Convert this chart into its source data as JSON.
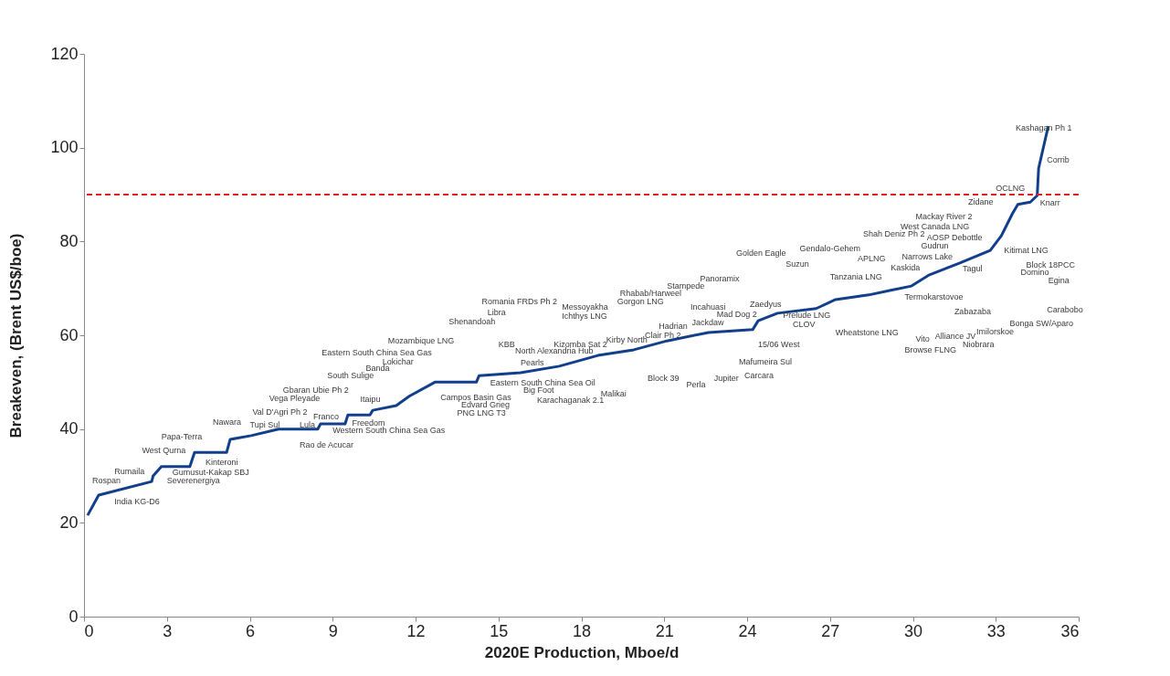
{
  "chart_data": {
    "type": "line",
    "xlabel": "2020E Production, Mboe/d",
    "ylabel": "Breakeven, (Brent US$/boe)",
    "xlim": [
      0,
      36
    ],
    "xticks": [
      0,
      3,
      6,
      9,
      12,
      15,
      18,
      21,
      24,
      27,
      30,
      33,
      36
    ],
    "ylim": [
      0,
      120
    ],
    "yticks": [
      0,
      20,
      40,
      60,
      80,
      100,
      120
    ],
    "grid": false,
    "marker": "none",
    "line_style": "solid",
    "series": [
      {
        "color": "#123f8c",
        "x": [
          0.13,
          0.53,
          2.45,
          2.5,
          2.8,
          3.83,
          4.0,
          5.16,
          5.29,
          6.05,
          7.04,
          8.46,
          8.56,
          9.45,
          9.55,
          10.35,
          10.45,
          11.3,
          11.77,
          12.7,
          14.2,
          14.3,
          15.8,
          17.2,
          18.6,
          19.9,
          21.1,
          22.6,
          24.2,
          24.4,
          25.1,
          26.5,
          27.2,
          28.4,
          29.2,
          29.95,
          30.6,
          31.7,
          32.8,
          33.2,
          33.6,
          33.8,
          34.25,
          34.5,
          34.55,
          34.9
        ],
        "values": [
          21.6,
          25.9,
          28.8,
          30,
          32,
          32,
          35,
          35,
          37.8,
          38.6,
          40,
          40,
          41.1,
          41.1,
          43,
          43,
          44,
          45,
          47,
          50,
          50,
          51.4,
          52,
          53.4,
          55.7,
          56.9,
          58.8,
          60.6,
          61.2,
          63.1,
          64.7,
          65.7,
          67.6,
          68.6,
          69.6,
          70.5,
          72.9,
          75.4,
          78.1,
          81.2,
          85.9,
          87.9,
          88.4,
          89.8,
          95.6,
          104.6
        ]
      }
    ],
    "ref_lines": [
      {
        "axis": "y",
        "value": 90,
        "color": "#e02020",
        "line_style": "dashed"
      }
    ],
    "annotations": [
      "Kashagan Ph 1",
      "Corrib",
      "Knarr",
      "Zidane",
      "OCLNG",
      "Mackay River 2",
      "West Canada LNG",
      "Shah Deniz Ph 2",
      "AOSP Debottle",
      "Gudrun",
      "Narrows Lake",
      "Kitimat LNG",
      "Block 18PCC",
      "Tagul",
      "Carabobo",
      "Bonga SW/Aparo",
      "Imilorskoe",
      "Niobrara",
      "Browse FLNG",
      "Alliance JV",
      "Vito",
      "Zabazaba",
      "Termokarstovoe",
      "Tanzania LNG",
      "APLNG",
      "Golden Eagle",
      "Gendalo-Gehem",
      "Suzun",
      "Zaedyus",
      "Incahuasi",
      "Hadrian",
      "Clair Ph 2",
      "Kirby North",
      "Mafumeira Sul",
      "Carcara",
      "Jupiter",
      "Perla",
      "Block 39",
      "Malikai",
      "Karachaganak 2.1",
      "Big Foot",
      "Pearls",
      "Kizomba Sat 2",
      "Eastern South China Sea Oil",
      "Libra",
      "Romania FRDs Ph 2",
      "Messoyakha",
      "Ichthys LNG",
      "Mozambique LNG",
      "KBB",
      "Eastern South China Sea Gas",
      "Western South China Sea Gas",
      "PNG LNG T3",
      "Edvard Grieg",
      "Campos Basin Gas",
      "South Sulige",
      "Banda",
      "Franco",
      "Lula",
      "Rao de Acucar",
      "Tupi Sul",
      "Nawara",
      "Val D'Agri Ph 2",
      "Vega Pleyade",
      "Gbaran Ubie Ph 2",
      "Itaipu",
      "Papa-Terra",
      "West Qurna",
      "Rumaila",
      "Rospan",
      "India KG-D6",
      "Severenergiya",
      "Gumusut-Kakap SBJ",
      "Kinteroni",
      "Freedom",
      "Shenandoah",
      "North Alexandria Hub",
      "Lokichar",
      "Rhabab/Harweel",
      "Stampede",
      "Panoramix",
      "Gorgon LNG",
      "Jackdaw",
      "Mad Dog 2",
      "Prelude LNG",
      "CLOV",
      "Wheatstone LNG",
      "15/06 West",
      "Kaskida",
      "Domino",
      "Egina"
    ]
  }
}
